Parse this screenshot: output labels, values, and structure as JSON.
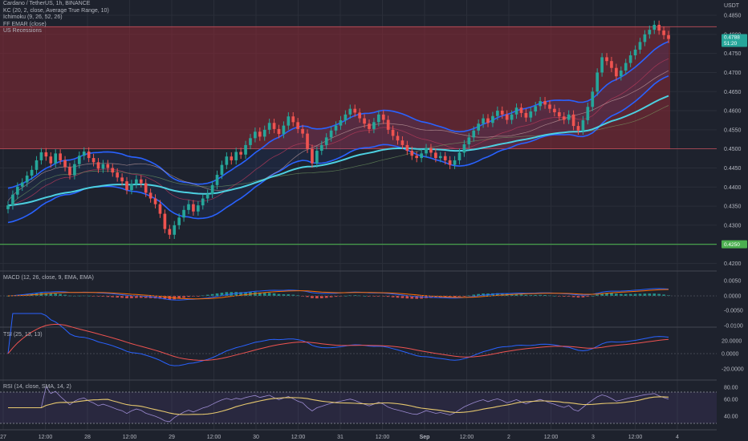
{
  "legend": {
    "title": "Cardano / TetherUS, 1h, BINANCE",
    "kc": "KC (20, 2, close, Average True Range, 10)",
    "ichimoku": "Ichimoku (9, 26, 52, 26)",
    "ema": "FF EMAR (close)",
    "recessions": "US Recessions"
  },
  "price_axis": {
    "unit": "USDT",
    "ticks": [
      "0.4850",
      "0.4800",
      "0.4750",
      "0.4700",
      "0.4650",
      "0.4600",
      "0.4550",
      "0.4500",
      "0.4450",
      "0.4400",
      "0.4350",
      "0.4300",
      "0.4250",
      "0.4200"
    ],
    "last_price": "0.4788",
    "countdown": "51:20",
    "support_label": "0.4250"
  },
  "panes": {
    "macd": {
      "label": "MACD (12, 26, close, 9, EMA, EMA)",
      "ticks": [
        "0.0050",
        "0.0000",
        "-0.0050",
        "-0.0100"
      ]
    },
    "tsi": {
      "label": "TSI (25, 13, 13)",
      "ticks": [
        "20.0000",
        "0.0000",
        "-20.0000"
      ]
    },
    "rsi": {
      "label": "RSI (14, close, SMA, 14, 2)",
      "ticks": [
        "80.00",
        "60.00",
        "40.00"
      ]
    }
  },
  "time_axis": [
    "27",
    "12:00",
    "28",
    "12:00",
    "29",
    "12:00",
    "30",
    "12:00",
    "31",
    "12:00",
    "Sep",
    "12:00",
    "2",
    "12:00",
    "3",
    "12:00",
    "4"
  ],
  "colors": {
    "background": "#1e222d",
    "up": "#26a69a",
    "down": "#ef5350",
    "kc": "#2962ff",
    "ema": "#4dd0e1",
    "zone": "#8e2a35",
    "support": "#4caf50",
    "macd": "#2962ff",
    "signal": "#ff6d00",
    "rsi": "#e6c86e"
  },
  "chart_data": {
    "type": "candlestick",
    "symbol": "Cardano / TetherUS",
    "interval": "1h",
    "exchange": "BINANCE",
    "ylim": [
      0.418,
      0.489
    ],
    "last_close": 0.4788,
    "resistance_zone": [
      0.45,
      0.482
    ],
    "support_level": 0.425,
    "closes": [
      0.4352,
      0.438,
      0.4401,
      0.4412,
      0.443,
      0.4445,
      0.447,
      0.4491,
      0.448,
      0.4462,
      0.4488,
      0.447,
      0.4452,
      0.4431,
      0.446,
      0.4482,
      0.4493,
      0.4476,
      0.4465,
      0.4448,
      0.446,
      0.445,
      0.4438,
      0.4425,
      0.4415,
      0.4392,
      0.4408,
      0.442,
      0.441,
      0.4385,
      0.437,
      0.4355,
      0.433,
      0.429,
      0.4275,
      0.43,
      0.432,
      0.434,
      0.4355,
      0.4336,
      0.4352,
      0.437,
      0.4382,
      0.4405,
      0.4432,
      0.4458,
      0.448,
      0.447,
      0.4492,
      0.4485,
      0.451,
      0.4528,
      0.4545,
      0.4532,
      0.455,
      0.4568,
      0.4552,
      0.4539,
      0.4561,
      0.4585,
      0.457,
      0.4552,
      0.454,
      0.45,
      0.4462,
      0.4495,
      0.451,
      0.453,
      0.4548,
      0.4561,
      0.4575,
      0.459,
      0.4605,
      0.4595,
      0.458,
      0.4566,
      0.4552,
      0.457,
      0.459,
      0.4576,
      0.455,
      0.4534,
      0.4522,
      0.451,
      0.4495,
      0.4482,
      0.4476,
      0.4488,
      0.4502,
      0.449,
      0.4476,
      0.4481,
      0.447,
      0.4458,
      0.447,
      0.449,
      0.4512,
      0.453,
      0.4548,
      0.4566,
      0.458,
      0.4568,
      0.4586,
      0.46,
      0.459,
      0.4576,
      0.459,
      0.4608,
      0.4594,
      0.4582,
      0.4598,
      0.4612,
      0.4625,
      0.4616,
      0.4605,
      0.4596,
      0.4585,
      0.4576,
      0.459,
      0.456,
      0.4548,
      0.4575,
      0.461,
      0.465,
      0.47,
      0.474,
      0.473,
      0.4712,
      0.469,
      0.4705,
      0.4725,
      0.4745,
      0.476,
      0.478,
      0.48,
      0.4812,
      0.4825,
      0.481,
      0.4798,
      0.4788
    ]
  }
}
